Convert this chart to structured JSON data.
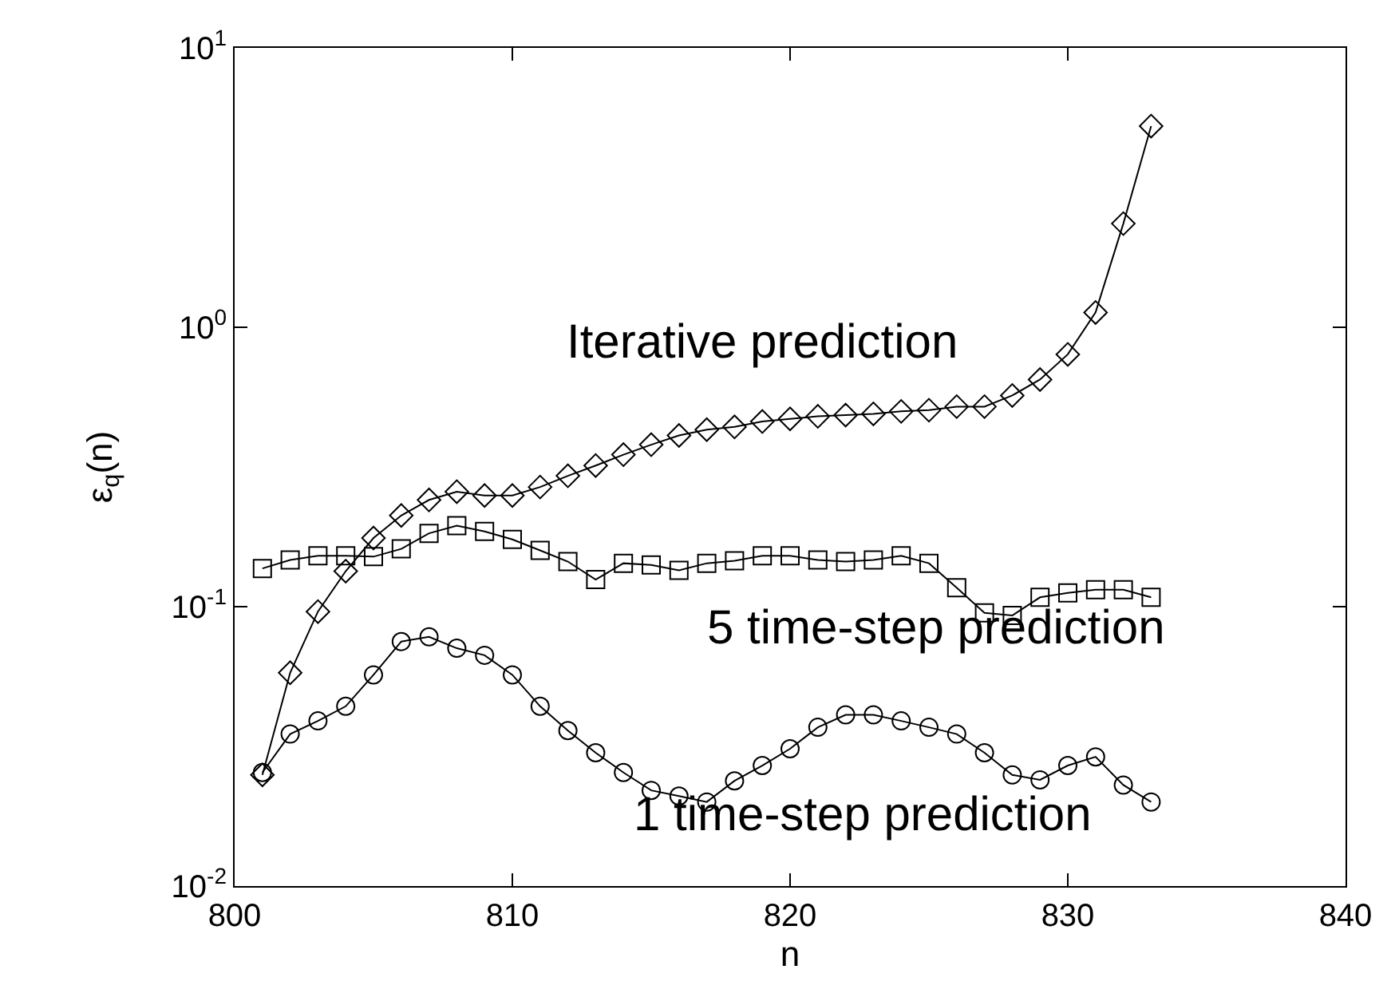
{
  "chart_data": {
    "type": "line",
    "xlabel": "n",
    "ylabel": "ε$_{q}$(n)",
    "log": "y",
    "x": [
      801,
      802,
      803,
      804,
      805,
      806,
      807,
      808,
      809,
      810,
      811,
      812,
      813,
      814,
      815,
      816,
      817,
      818,
      819,
      820,
      821,
      822,
      823,
      824,
      825,
      826,
      827,
      828,
      829,
      830,
      831,
      832,
      833
    ],
    "xlim": [
      800,
      840
    ],
    "xticks": [
      800,
      810,
      820,
      830,
      840
    ],
    "ylim": [
      0.01,
      10
    ],
    "yticks": [
      {
        "value": 0.01,
        "label": "10$^{-2}$"
      },
      {
        "value": 0.1,
        "label": "10$^{-1}$"
      },
      {
        "value": 1,
        "label": "10$^{0}$"
      },
      {
        "value": 10,
        "label": "10$^{1}$"
      }
    ],
    "series": [
      {
        "color": "#000000",
        "marker": "diamond",
        "values": [
          0.025,
          0.058,
          0.096,
          0.134,
          0.176,
          0.212,
          0.241,
          0.258,
          0.25,
          0.25,
          0.268,
          0.294,
          0.32,
          0.35,
          0.38,
          0.41,
          0.43,
          0.44,
          0.46,
          0.47,
          0.48,
          0.485,
          0.49,
          0.5,
          0.505,
          0.52,
          0.52,
          0.57,
          0.65,
          0.8,
          1.13,
          2.35,
          5.25
        ]
      },
      {
        "color": "#000000",
        "marker": "square",
        "values": [
          0.137,
          0.147,
          0.152,
          0.152,
          0.151,
          0.161,
          0.183,
          0.195,
          0.186,
          0.174,
          0.159,
          0.145,
          0.125,
          0.143,
          0.141,
          0.135,
          0.143,
          0.146,
          0.152,
          0.152,
          0.147,
          0.145,
          0.147,
          0.152,
          0.143,
          0.117,
          0.095,
          0.093,
          0.108,
          0.112,
          0.115,
          0.115,
          0.108
        ]
      },
      {
        "color": "#000000",
        "marker": "circle",
        "values": [
          0.0255,
          0.035,
          0.039,
          0.044,
          0.057,
          0.075,
          0.078,
          0.071,
          0.067,
          0.057,
          0.044,
          0.036,
          0.03,
          0.0255,
          0.022,
          0.021,
          0.02,
          0.0238,
          0.027,
          0.031,
          0.037,
          0.041,
          0.041,
          0.039,
          0.037,
          0.035,
          0.03,
          0.025,
          0.024,
          0.027,
          0.029,
          0.023,
          0.02
        ]
      }
    ],
    "annotations": [
      "Iterative prediction",
      "5 time-step prediction",
      "1 time-step prediction"
    ]
  }
}
